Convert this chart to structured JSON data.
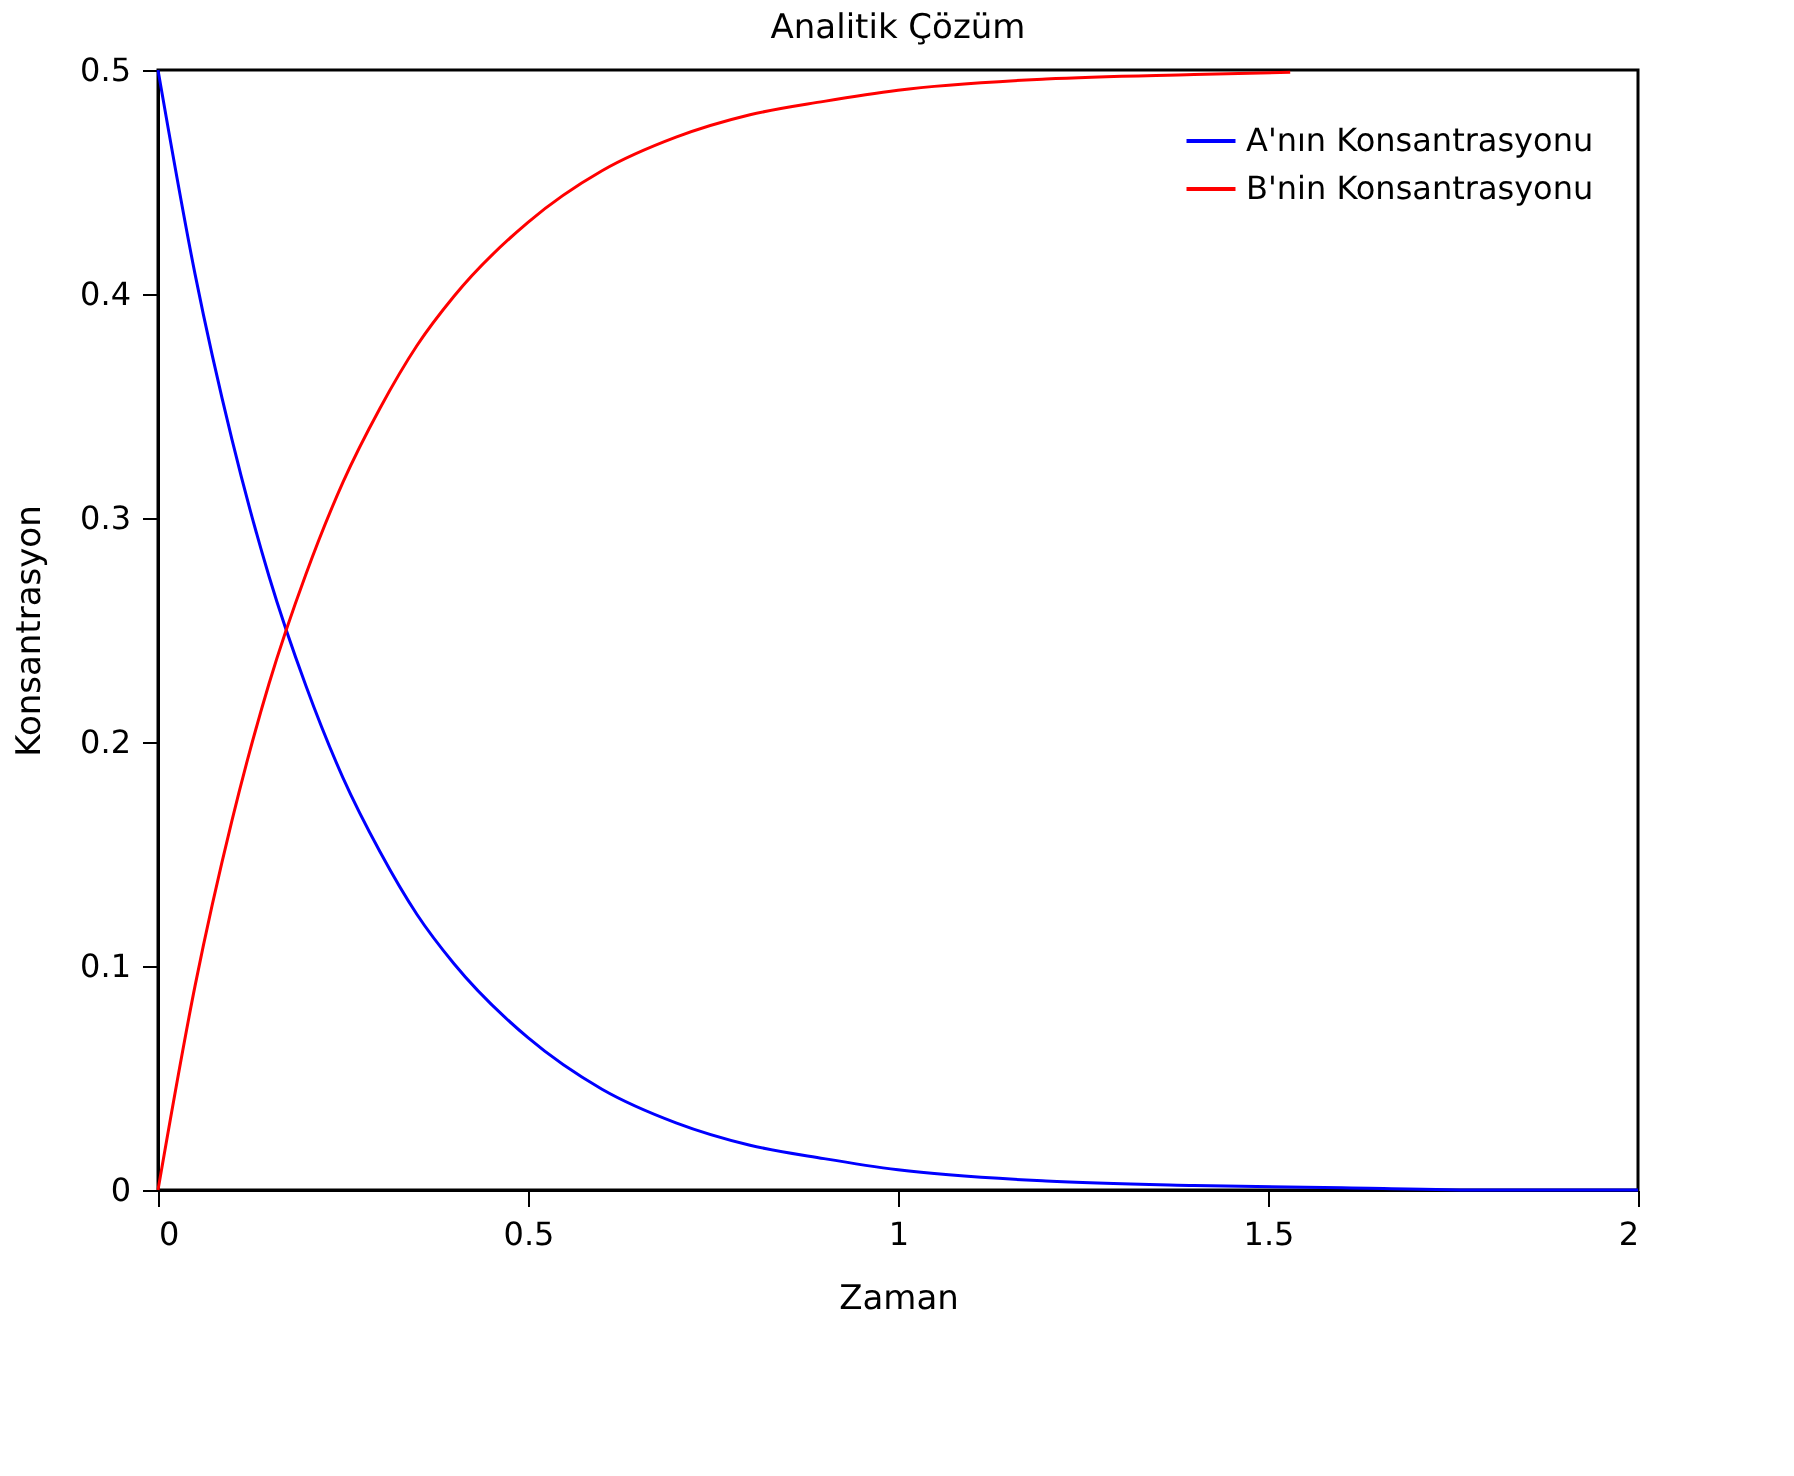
{
  "chart_data": {
    "type": "line",
    "title": "Analitik Çözüm",
    "xlabel": "Zaman",
    "ylabel": "Konsantrasyon",
    "xlim": [
      0,
      2
    ],
    "xticks": [
      0,
      0.5,
      1,
      1.5,
      2
    ],
    "ylim": [
      0,
      0.5
    ],
    "yticks": [
      0,
      0.1,
      0.2,
      0.3,
      0.4,
      0.5
    ],
    "grid": false,
    "legend": "top right",
    "marker": "none",
    "line_style": "solid",
    "series": [
      {
        "name": "A'nın Konsantrasyonu",
        "color": "#0000ff",
        "x": [
          0,
          0.05,
          0.1,
          0.15,
          0.2,
          0.25,
          0.3,
          0.35,
          0.4,
          0.5,
          0.6,
          0.7,
          0.8,
          0.9,
          1.0,
          1.2,
          1.4,
          1.6,
          1.8,
          2.0
        ],
        "values": [
          0.5,
          0.409,
          0.335,
          0.274,
          0.225,
          0.184,
          0.151,
          0.123,
          0.101,
          0.068,
          0.045,
          0.03,
          0.02,
          0.014,
          0.009,
          0.004,
          0.002,
          0.001,
          0.0,
          0.0
        ]
      },
      {
        "name": "B'nin Konsantrasyonu",
        "color": "#ff0000",
        "x": [
          0,
          0.05,
          0.1,
          0.15,
          0.2,
          0.25,
          0.3,
          0.35,
          0.4,
          0.5,
          0.6,
          0.7,
          0.8,
          0.9,
          1.0,
          1.2,
          1.4,
          1.53
        ],
        "values": [
          0.0,
          0.091,
          0.165,
          0.226,
          0.275,
          0.316,
          0.349,
          0.377,
          0.399,
          0.432,
          0.455,
          0.47,
          0.48,
          0.486,
          0.491,
          0.496,
          0.498,
          0.499
        ]
      }
    ]
  }
}
